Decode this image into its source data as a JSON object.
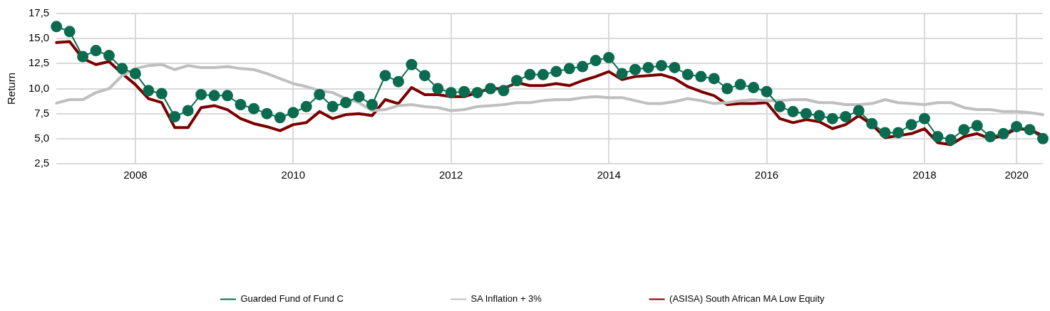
{
  "chart_data": {
    "type": "line",
    "ylabel": "Return",
    "categories": [
      null,
      null,
      null,
      null,
      null,
      null,
      "2008",
      null,
      null,
      null,
      null,
      null,
      null,
      null,
      null,
      null,
      null,
      null,
      "2010",
      null,
      null,
      null,
      null,
      null,
      null,
      null,
      null,
      null,
      null,
      null,
      "2012",
      null,
      null,
      null,
      null,
      null,
      null,
      null,
      null,
      null,
      null,
      null,
      "2014",
      null,
      null,
      null,
      null,
      null,
      null,
      null,
      null,
      null,
      null,
      null,
      "2016",
      null,
      null,
      null,
      null,
      null,
      null,
      null,
      null,
      null,
      null,
      null,
      "2018",
      null,
      null,
      null,
      null,
      null,
      null,
      "2020",
      null,
      null
    ],
    "ylim": [
      2.5,
      17.5
    ],
    "yticks": [
      {
        "value": 2.5,
        "label": "2,5"
      },
      {
        "value": 5,
        "label": "5,0"
      },
      {
        "value": 7.5,
        "label": "7,5"
      },
      {
        "value": 10,
        "label": "10,0"
      },
      {
        "value": 12.5,
        "label": "12,5"
      },
      {
        "value": 15,
        "label": "15,0"
      },
      {
        "value": 17.5,
        "label": "17,5"
      }
    ],
    "grid": true,
    "legend": "bottom",
    "line_style": "solid",
    "series": [
      {
        "name": "Guarded Fund of Fund C",
        "color": "#0b6b4f",
        "marker": "circle",
        "values": [
          16.2,
          15.7,
          13.2,
          13.8,
          13.3,
          12.0,
          11.5,
          9.8,
          9.5,
          7.2,
          7.8,
          9.4,
          9.3,
          9.3,
          8.4,
          8.0,
          7.5,
          7.1,
          7.6,
          8.2,
          9.4,
          8.2,
          8.6,
          9.2,
          8.4,
          11.3,
          10.7,
          12.4,
          11.3,
          10.0,
          9.6,
          9.7,
          9.6,
          10.0,
          9.8,
          10.8,
          11.4,
          11.4,
          11.7,
          12.0,
          12.2,
          12.8,
          13.1,
          11.5,
          11.9,
          12.1,
          12.3,
          12.1,
          11.4,
          11.2,
          11.0,
          10.0,
          10.4,
          10.1,
          9.7,
          8.2,
          7.7,
          7.5,
          7.3,
          7.0,
          7.2,
          7.8,
          6.5,
          5.6,
          5.6,
          6.4,
          7.0,
          5.2,
          4.9,
          5.9,
          6.3,
          5.2,
          5.5,
          6.2,
          5.9,
          5.0
        ]
      },
      {
        "name": "SA Inflation + 3%",
        "color": "#bfbfbf",
        "marker": "none",
        "values": [
          8.55,
          8.9,
          8.9,
          9.6,
          10.0,
          11.3,
          12.0,
          12.3,
          12.4,
          11.9,
          12.3,
          12.1,
          12.1,
          12.2,
          12.0,
          11.9,
          11.5,
          11.0,
          10.5,
          10.2,
          9.8,
          9.6,
          9.0,
          8.6,
          7.8,
          7.9,
          8.3,
          8.4,
          8.2,
          8.1,
          7.8,
          7.9,
          8.2,
          8.3,
          8.4,
          8.6,
          8.6,
          8.8,
          8.9,
          8.9,
          9.1,
          9.2,
          9.1,
          9.1,
          8.8,
          8.5,
          8.5,
          8.7,
          9.0,
          8.8,
          8.5,
          8.6,
          8.8,
          8.9,
          8.8,
          8.8,
          8.9,
          8.9,
          8.6,
          8.6,
          8.4,
          8.4,
          8.5,
          8.9,
          8.6,
          8.5,
          8.4,
          8.6,
          8.6,
          8.1,
          7.9,
          7.9,
          7.7,
          7.7,
          7.6,
          7.4
        ]
      },
      {
        "name": "(ASISA) South African MA Low Equity",
        "color": "#7b0000",
        "marker": "none",
        "values": [
          14.6,
          14.7,
          13.0,
          12.4,
          12.7,
          11.5,
          10.4,
          9.0,
          8.6,
          6.1,
          6.1,
          8.1,
          8.3,
          7.9,
          7.0,
          6.5,
          6.2,
          5.8,
          6.4,
          6.6,
          7.7,
          7.0,
          7.4,
          7.5,
          7.3,
          8.9,
          8.5,
          10.1,
          9.4,
          9.4,
          9.2,
          9.2,
          9.6,
          10.0,
          10.0,
          10.6,
          10.3,
          10.3,
          10.5,
          10.3,
          10.8,
          11.2,
          11.7,
          10.9,
          11.2,
          11.3,
          11.4,
          11.0,
          10.2,
          9.7,
          9.3,
          8.4,
          8.5,
          8.5,
          8.6,
          7.0,
          6.6,
          6.9,
          6.7,
          6.0,
          6.4,
          7.3,
          6.4,
          5.1,
          5.3,
          5.5,
          6.0,
          4.6,
          4.4,
          5.2,
          5.5,
          5.0,
          5.3,
          6.0,
          5.9,
          5.3
        ]
      }
    ]
  }
}
